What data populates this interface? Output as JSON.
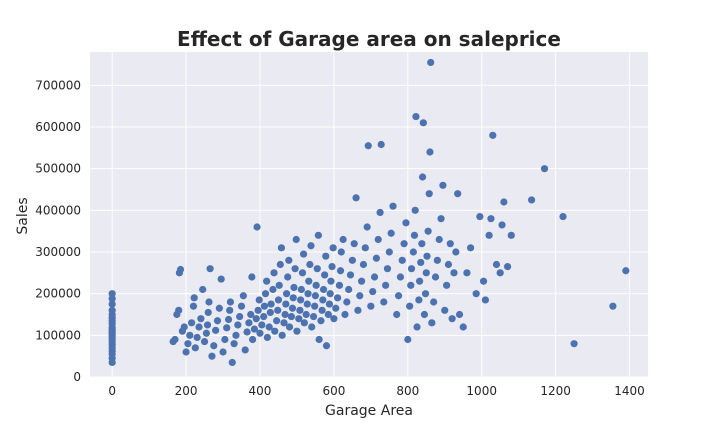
{
  "chart_data": {
    "type": "scatter",
    "title": "Effect of Garage area on saleprice",
    "xlabel": "Garage Area",
    "ylabel": "Sales",
    "xlim": [
      -60,
      1450
    ],
    "ylim": [
      0,
      780000
    ],
    "xticks": [
      0,
      200,
      400,
      600,
      800,
      1000,
      1200,
      1400
    ],
    "yticks": [
      0,
      100000,
      200000,
      300000,
      400000,
      500000,
      600000,
      700000
    ],
    "grid": true,
    "legend": "none",
    "colors": {
      "background": "#eaeaf2",
      "grid": "#ffffff",
      "point": "#4c72b0",
      "text": "#262626"
    },
    "series": [
      {
        "points": [
          [
            0,
            35000
          ],
          [
            0,
            45000
          ],
          [
            0,
            55000
          ],
          [
            0,
            62000
          ],
          [
            0,
            70000
          ],
          [
            0,
            78000
          ],
          [
            0,
            84000
          ],
          [
            0,
            90000
          ],
          [
            0,
            95000
          ],
          [
            0,
            100000
          ],
          [
            0,
            105000
          ],
          [
            0,
            110000
          ],
          [
            0,
            115000
          ],
          [
            0,
            120000
          ],
          [
            0,
            128000
          ],
          [
            0,
            135000
          ],
          [
            0,
            142000
          ],
          [
            0,
            150000
          ],
          [
            0,
            160000
          ],
          [
            0,
            175000
          ],
          [
            0,
            188000
          ],
          [
            0,
            200000
          ],
          [
            165,
            85000
          ],
          [
            170,
            90000
          ],
          [
            175,
            150000
          ],
          [
            180,
            160000
          ],
          [
            182,
            250000
          ],
          [
            185,
            258000
          ],
          [
            190,
            110000
          ],
          [
            195,
            120000
          ],
          [
            200,
            60000
          ],
          [
            205,
            80000
          ],
          [
            210,
            100000
          ],
          [
            215,
            130000
          ],
          [
            220,
            170000
          ],
          [
            222,
            190000
          ],
          [
            225,
            70000
          ],
          [
            230,
            95000
          ],
          [
            235,
            120000
          ],
          [
            240,
            140000
          ],
          [
            245,
            210000
          ],
          [
            250,
            85000
          ],
          [
            255,
            105000
          ],
          [
            258,
            125000
          ],
          [
            260,
            155000
          ],
          [
            262,
            180000
          ],
          [
            265,
            260000
          ],
          [
            270,
            50000
          ],
          [
            275,
            75000
          ],
          [
            280,
            112000
          ],
          [
            285,
            135000
          ],
          [
            290,
            165000
          ],
          [
            295,
            235000
          ],
          [
            300,
            60000
          ],
          [
            305,
            90000
          ],
          [
            310,
            118000
          ],
          [
            315,
            138000
          ],
          [
            318,
            160000
          ],
          [
            320,
            180000
          ],
          [
            325,
            35000
          ],
          [
            330,
            80000
          ],
          [
            335,
            100000
          ],
          [
            340,
            125000
          ],
          [
            345,
            145000
          ],
          [
            350,
            170000
          ],
          [
            355,
            195000
          ],
          [
            360,
            65000
          ],
          [
            365,
            108000
          ],
          [
            370,
            130000
          ],
          [
            375,
            150000
          ],
          [
            378,
            240000
          ],
          [
            380,
            90000
          ],
          [
            385,
            115000
          ],
          [
            390,
            140000
          ],
          [
            392,
            360000
          ],
          [
            395,
            160000
          ],
          [
            398,
            185000
          ],
          [
            400,
            105000
          ],
          [
            405,
            125000
          ],
          [
            410,
            145000
          ],
          [
            412,
            170000
          ],
          [
            415,
            200000
          ],
          [
            418,
            230000
          ],
          [
            420,
            95000
          ],
          [
            425,
            120000
          ],
          [
            428,
            155000
          ],
          [
            430,
            175000
          ],
          [
            435,
            210000
          ],
          [
            438,
            250000
          ],
          [
            440,
            110000
          ],
          [
            445,
            135000
          ],
          [
            448,
            160000
          ],
          [
            450,
            185000
          ],
          [
            452,
            220000
          ],
          [
            455,
            270000
          ],
          [
            458,
            310000
          ],
          [
            460,
            100000
          ],
          [
            465,
            130000
          ],
          [
            468,
            150000
          ],
          [
            470,
            175000
          ],
          [
            472,
            200000
          ],
          [
            475,
            240000
          ],
          [
            478,
            280000
          ],
          [
            480,
            120000
          ],
          [
            485,
            145000
          ],
          [
            488,
            165000
          ],
          [
            490,
            190000
          ],
          [
            492,
            215000
          ],
          [
            495,
            260000
          ],
          [
            498,
            330000
          ],
          [
            500,
            110000
          ],
          [
            505,
            140000
          ],
          [
            508,
            160000
          ],
          [
            510,
            185000
          ],
          [
            512,
            210000
          ],
          [
            515,
            250000
          ],
          [
            518,
            295000
          ],
          [
            520,
            130000
          ],
          [
            525,
            150000
          ],
          [
            528,
            175000
          ],
          [
            530,
            200000
          ],
          [
            532,
            230000
          ],
          [
            535,
            270000
          ],
          [
            538,
            315000
          ],
          [
            540,
            120000
          ],
          [
            545,
            145000
          ],
          [
            548,
            170000
          ],
          [
            550,
            195000
          ],
          [
            552,
            220000
          ],
          [
            555,
            260000
          ],
          [
            558,
            340000
          ],
          [
            560,
            90000
          ],
          [
            565,
            135000
          ],
          [
            568,
            160000
          ],
          [
            570,
            185000
          ],
          [
            572,
            210000
          ],
          [
            575,
            245000
          ],
          [
            578,
            290000
          ],
          [
            580,
            75000
          ],
          [
            585,
            150000
          ],
          [
            588,
            175000
          ],
          [
            590,
            200000
          ],
          [
            592,
            230000
          ],
          [
            595,
            265000
          ],
          [
            598,
            310000
          ],
          [
            600,
            140000
          ],
          [
            605,
            165000
          ],
          [
            610,
            190000
          ],
          [
            615,
            220000
          ],
          [
            618,
            255000
          ],
          [
            620,
            300000
          ],
          [
            625,
            330000
          ],
          [
            630,
            150000
          ],
          [
            635,
            180000
          ],
          [
            640,
            210000
          ],
          [
            645,
            245000
          ],
          [
            650,
            280000
          ],
          [
            655,
            320000
          ],
          [
            660,
            430000
          ],
          [
            665,
            160000
          ],
          [
            670,
            195000
          ],
          [
            675,
            230000
          ],
          [
            680,
            270000
          ],
          [
            685,
            310000
          ],
          [
            690,
            360000
          ],
          [
            693,
            555000
          ],
          [
            700,
            170000
          ],
          [
            705,
            205000
          ],
          [
            710,
            240000
          ],
          [
            715,
            285000
          ],
          [
            720,
            330000
          ],
          [
            725,
            395000
          ],
          [
            728,
            558000
          ],
          [
            735,
            180000
          ],
          [
            740,
            220000
          ],
          [
            745,
            260000
          ],
          [
            750,
            300000
          ],
          [
            755,
            345000
          ],
          [
            760,
            410000
          ],
          [
            770,
            150000
          ],
          [
            775,
            195000
          ],
          [
            780,
            240000
          ],
          [
            785,
            280000
          ],
          [
            790,
            320000
          ],
          [
            795,
            370000
          ],
          [
            800,
            90000
          ],
          [
            805,
            170000
          ],
          [
            808,
            220000
          ],
          [
            810,
            260000
          ],
          [
            815,
            300000
          ],
          [
            818,
            340000
          ],
          [
            820,
            400000
          ],
          [
            822,
            625000
          ],
          [
            825,
            120000
          ],
          [
            830,
            185000
          ],
          [
            832,
            230000
          ],
          [
            835,
            275000
          ],
          [
            838,
            320000
          ],
          [
            840,
            480000
          ],
          [
            842,
            610000
          ],
          [
            845,
            150000
          ],
          [
            848,
            200000
          ],
          [
            850,
            250000
          ],
          [
            852,
            290000
          ],
          [
            855,
            350000
          ],
          [
            858,
            440000
          ],
          [
            860,
            540000
          ],
          [
            862,
            755000
          ],
          [
            865,
            130000
          ],
          [
            870,
            180000
          ],
          [
            875,
            240000
          ],
          [
            880,
            280000
          ],
          [
            885,
            330000
          ],
          [
            890,
            380000
          ],
          [
            895,
            460000
          ],
          [
            900,
            160000
          ],
          [
            905,
            220000
          ],
          [
            910,
            270000
          ],
          [
            915,
            320000
          ],
          [
            920,
            140000
          ],
          [
            925,
            250000
          ],
          [
            930,
            300000
          ],
          [
            935,
            440000
          ],
          [
            940,
            150000
          ],
          [
            950,
            120000
          ],
          [
            960,
            250000
          ],
          [
            970,
            310000
          ],
          [
            985,
            200000
          ],
          [
            995,
            385000
          ],
          [
            1005,
            230000
          ],
          [
            1010,
            185000
          ],
          [
            1020,
            340000
          ],
          [
            1025,
            380000
          ],
          [
            1030,
            580000
          ],
          [
            1040,
            270000
          ],
          [
            1050,
            250000
          ],
          [
            1055,
            365000
          ],
          [
            1060,
            420000
          ],
          [
            1070,
            265000
          ],
          [
            1080,
            340000
          ],
          [
            1135,
            425000
          ],
          [
            1170,
            500000
          ],
          [
            1220,
            385000
          ],
          [
            1250,
            80000
          ],
          [
            1355,
            170000
          ],
          [
            1390,
            255000
          ]
        ]
      }
    ]
  }
}
